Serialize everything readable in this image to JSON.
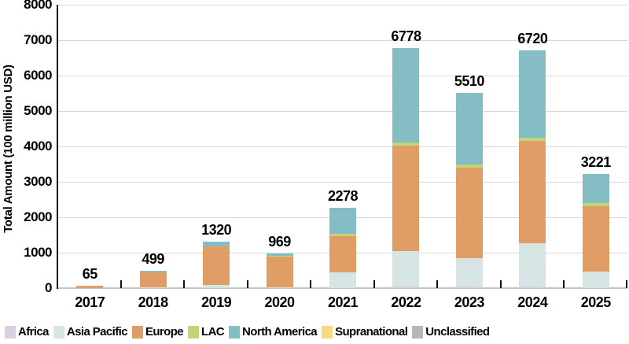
{
  "chart_data": {
    "type": "bar",
    "stacked": true,
    "ylabel": "Total Amount (100 million USD)",
    "xlabel": "",
    "ylim": [
      0,
      8000
    ],
    "y_tick_step": 1000,
    "y_ticks": [
      0,
      1000,
      2000,
      3000,
      4000,
      5000,
      6000,
      7000,
      8000
    ],
    "grid": true,
    "legend_position": "bottom",
    "categories": [
      "2017",
      "2018",
      "2019",
      "2020",
      "2021",
      "2022",
      "2023",
      "2024",
      "2025"
    ],
    "series": [
      {
        "name": "Africa",
        "color": "#d9cfe2",
        "values": [
          0,
          0,
          0,
          0,
          0,
          40,
          35,
          40,
          0
        ]
      },
      {
        "name": "Asia Pacific",
        "color": "#d6e5e3",
        "values": [
          0,
          25,
          90,
          20,
          438,
          1000,
          810,
          1220,
          460
        ]
      },
      {
        "name": "Europe",
        "color": "#e09e66",
        "values": [
          65,
          430,
          1080,
          860,
          1030,
          2980,
          2550,
          2890,
          1860
        ]
      },
      {
        "name": "LAC",
        "color": "#c3d377",
        "values": [
          0,
          0,
          0,
          40,
          70,
          100,
          105,
          90,
          70
        ]
      },
      {
        "name": "North America",
        "color": "#84bec4",
        "values": [
          0,
          44,
          150,
          49,
          740,
          2658,
          2010,
          2480,
          831
        ]
      },
      {
        "name": "Supranational",
        "color": "#f6d980",
        "values": [
          0,
          0,
          0,
          0,
          0,
          0,
          0,
          0,
          0
        ]
      },
      {
        "name": "Unclassified",
        "color": "#b7b7b7",
        "values": [
          0,
          0,
          0,
          0,
          0,
          0,
          0,
          0,
          0
        ]
      }
    ],
    "totals": [
      65,
      499,
      1320,
      969,
      2278,
      6778,
      5510,
      6720,
      3221
    ]
  },
  "colors": {
    "gridline": "#d9d9d9",
    "baseline": "#c6c6c6",
    "axis_line": "#161616",
    "text": "#000000"
  }
}
